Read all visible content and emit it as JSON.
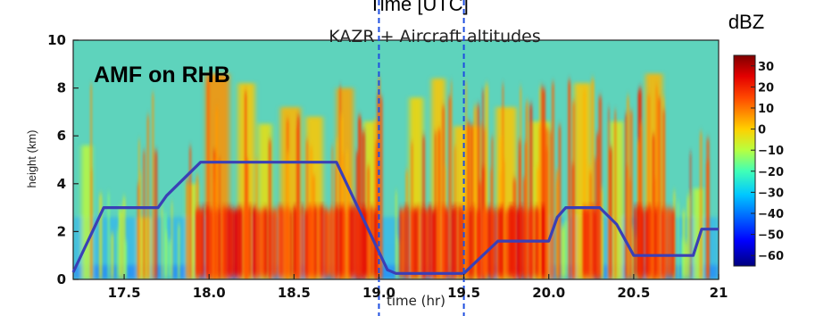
{
  "chart_data": {
    "type": "heatmap",
    "title": "KAZR + Aircraft altitudes",
    "overlay_title": "Time [UTC]",
    "annotation": "AMF on RHB",
    "xlabel": "time (hr)",
    "ylabel": "height (km)",
    "colorbar_label": "dBZ",
    "xlim": [
      17.2,
      21.0
    ],
    "ylim": [
      0,
      10
    ],
    "x_ticks": [
      17.5,
      18.0,
      18.5,
      19.0,
      19.5,
      20.0,
      20.5,
      21
    ],
    "x_tick_labels": [
      "17.5",
      "18.0",
      "18.5",
      "19.0",
      "19.5",
      "20.0",
      "20.5",
      "21"
    ],
    "y_ticks": [
      0,
      2,
      4,
      6,
      8,
      10
    ],
    "y_tick_labels": [
      "0",
      "2",
      "4",
      "6",
      "8",
      "10"
    ],
    "colorbar_range": [
      -65,
      35
    ],
    "colorbar_ticks": [
      30,
      20,
      10,
      0,
      -10,
      -20,
      -30,
      -40,
      -50,
      -60
    ],
    "colorbar_tick_labels": [
      "30",
      "20",
      "10",
      "0",
      "−10",
      "−20",
      "−30",
      "−40",
      "−50",
      "−60"
    ],
    "aircraft_altitude_km": {
      "x": [
        17.2,
        17.38,
        17.5,
        17.7,
        17.75,
        17.95,
        18.0,
        18.75,
        19.05,
        19.1,
        19.5,
        19.7,
        20.0,
        20.05,
        20.1,
        20.3,
        20.4,
        20.5,
        20.75,
        20.85,
        20.9,
        21.0
      ],
      "y": [
        0.3,
        3.0,
        3.0,
        3.0,
        3.5,
        4.9,
        4.9,
        4.9,
        0.4,
        0.25,
        0.25,
        1.6,
        1.6,
        2.6,
        3.0,
        3.0,
        2.3,
        1.0,
        1.0,
        1.0,
        2.1,
        2.1
      ]
    },
    "marked_times": [
      19.0,
      19.5
    ],
    "colors": {
      "aircraft_track": "#3a3fb6",
      "marker_lines": "#1f4fe0",
      "background_echo": "#5ad0c0"
    }
  }
}
